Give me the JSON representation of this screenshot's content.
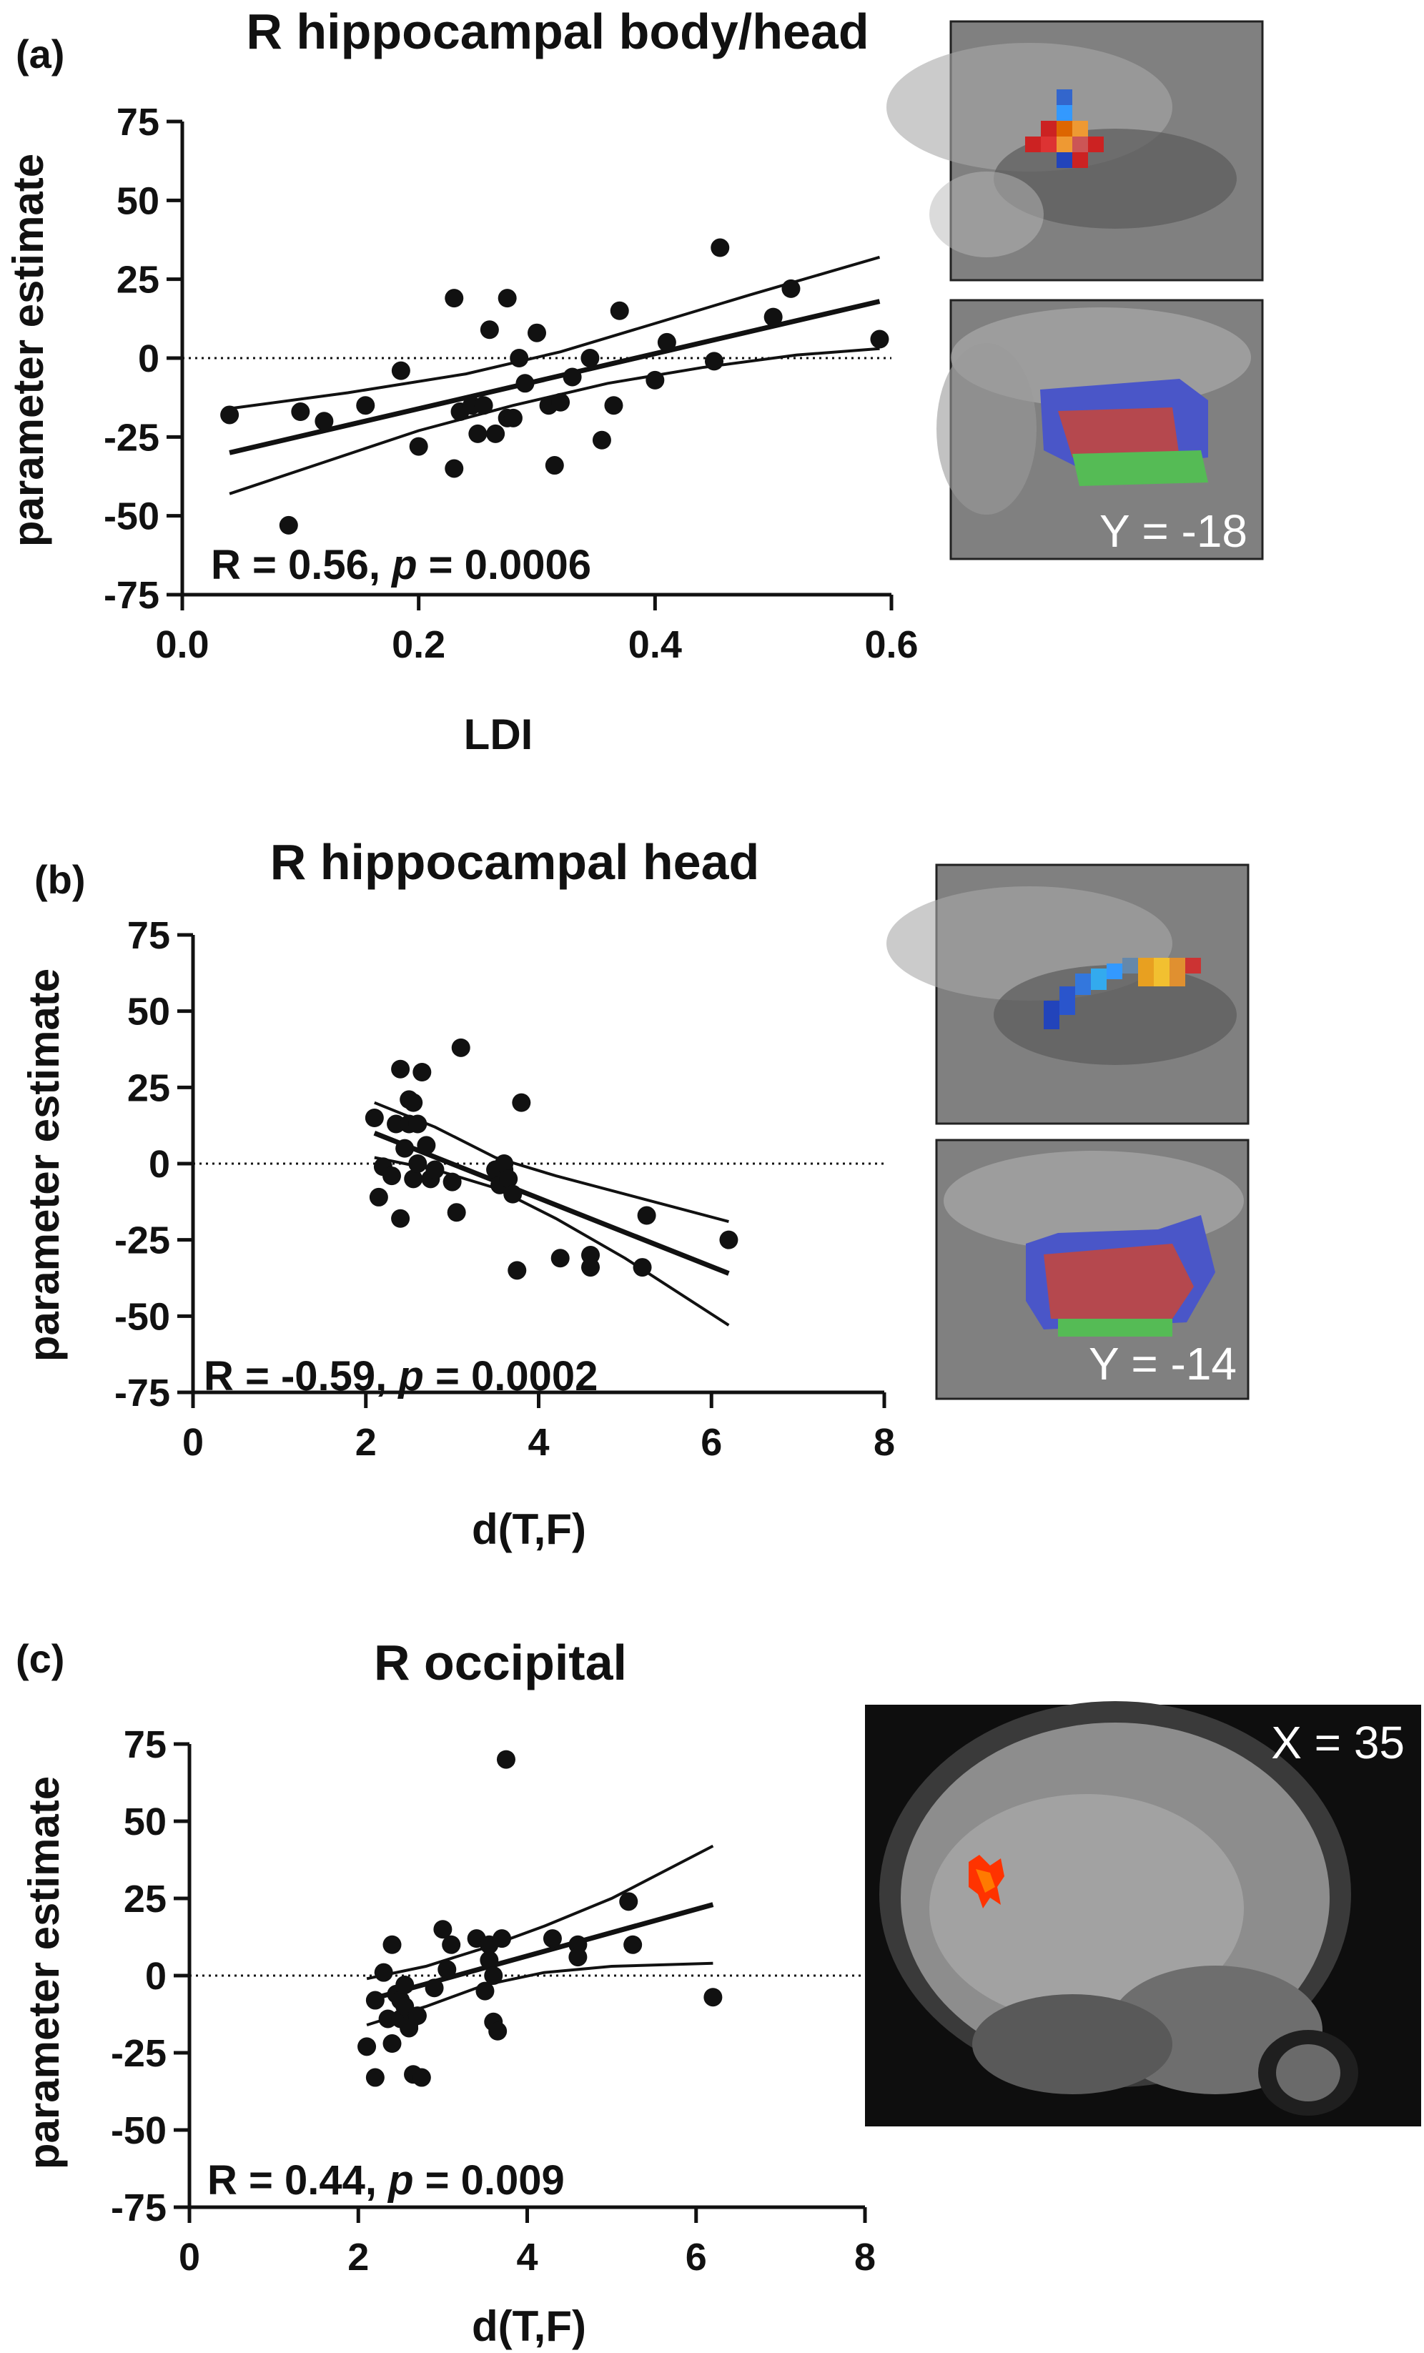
{
  "chart_data": [
    {
      "panel": "(a)",
      "type": "scatter",
      "title": "R hippocampal body/head",
      "xlabel": "LDI",
      "ylabel": "parameter estimate",
      "xlim": [
        0.0,
        0.6
      ],
      "ylim": [
        -75,
        75
      ],
      "x_ticks": [
        "0.0",
        "0.2",
        "0.4",
        "0.6"
      ],
      "y_ticks": [
        "75",
        "50",
        "25",
        "0",
        "-25",
        "-50",
        "-75"
      ],
      "stat_prefix": "R = 0.56, ",
      "stat_p": "p",
      "stat_suffix": " = 0.0006",
      "reference_line_y": 0,
      "fit": {
        "x": [
          0.04,
          0.59
        ],
        "y": [
          -30,
          18
        ]
      },
      "ci_upper": {
        "x": [
          0.04,
          0.14,
          0.24,
          0.32,
          0.4,
          0.48,
          0.59
        ],
        "y": [
          -16,
          -11,
          -5,
          2,
          11,
          20,
          32
        ]
      },
      "ci_lower": {
        "x": [
          0.04,
          0.12,
          0.2,
          0.28,
          0.36,
          0.44,
          0.52,
          0.59
        ],
        "y": [
          -43,
          -33,
          -23,
          -15,
          -8,
          -3,
          1,
          3
        ]
      },
      "points": {
        "x": [
          0.04,
          0.09,
          0.1,
          0.12,
          0.155,
          0.185,
          0.2,
          0.23,
          0.23,
          0.235,
          0.245,
          0.25,
          0.255,
          0.26,
          0.265,
          0.275,
          0.275,
          0.28,
          0.285,
          0.29,
          0.3,
          0.31,
          0.315,
          0.32,
          0.33,
          0.345,
          0.355,
          0.365,
          0.37,
          0.4,
          0.41,
          0.45,
          0.455,
          0.5,
          0.515,
          0.59
        ],
        "y": [
          -18,
          -53,
          -17,
          -20,
          -15,
          -4,
          -28,
          19,
          -35,
          -17,
          -15,
          -24,
          -15,
          9,
          -24,
          19,
          -19,
          -19,
          0,
          -8,
          8,
          -15,
          -34,
          -14,
          -6,
          0,
          -26,
          -15,
          15,
          -7,
          5,
          -1,
          35,
          13,
          22,
          6
        ]
      }
    },
    {
      "panel": "(b)",
      "type": "scatter",
      "title": "R hippocampal head",
      "xlabel": "d(T,F)",
      "ylabel": "parameter estimate",
      "xlim": [
        0,
        8
      ],
      "ylim": [
        -75,
        75
      ],
      "x_ticks": [
        "0",
        "2",
        "4",
        "6",
        "8"
      ],
      "y_ticks": [
        "75",
        "50",
        "25",
        "0",
        "-25",
        "-50",
        "-75"
      ],
      "stat_prefix": "R = -0.59, ",
      "stat_p": "p",
      "stat_suffix": " = 0.0002",
      "reference_line_y": 0,
      "fit": {
        "x": [
          2.1,
          6.2
        ],
        "y": [
          10,
          -36
        ]
      },
      "ci_upper": {
        "x": [
          2.1,
          2.8,
          3.5,
          4.2,
          5.0,
          6.2
        ],
        "y": [
          20,
          12,
          2,
          -4,
          -10,
          -19
        ]
      },
      "ci_lower": {
        "x": [
          2.1,
          2.8,
          3.5,
          4.2,
          5.0,
          6.2
        ],
        "y": [
          2,
          -2,
          -8,
          -18,
          -31,
          -53
        ]
      },
      "points": {
        "x": [
          2.1,
          2.15,
          2.2,
          2.3,
          2.35,
          2.4,
          2.4,
          2.45,
          2.5,
          2.5,
          2.55,
          2.55,
          2.6,
          2.6,
          2.65,
          2.7,
          2.75,
          2.8,
          3.0,
          3.05,
          3.1,
          3.5,
          3.55,
          3.6,
          3.6,
          3.65,
          3.7,
          3.75,
          3.8,
          4.25,
          4.6,
          4.6,
          5.2,
          5.25,
          6.2
        ],
        "y": [
          15,
          -11,
          -1,
          -4,
          13,
          31,
          -18,
          5,
          21,
          13,
          -5,
          20,
          0,
          13,
          30,
          6,
          -5,
          -2,
          -6,
          -16,
          38,
          -2,
          -7,
          -2,
          0,
          -5,
          -10,
          -35,
          20,
          -31,
          -34,
          -30,
          -34,
          -17,
          -25
        ]
      }
    },
    {
      "panel": "(c)",
      "type": "scatter",
      "title": "R occipital",
      "xlabel": "d(T,F)",
      "ylabel": "parameter estimate",
      "xlim": [
        0,
        8
      ],
      "ylim": [
        -75,
        75
      ],
      "x_ticks": [
        "0",
        "2",
        "4",
        "6",
        "8"
      ],
      "y_ticks": [
        "75",
        "50",
        "25",
        "0",
        "-25",
        "-50",
        "-75"
      ],
      "stat_prefix": "R = 0.44, ",
      "stat_p": "p",
      "stat_suffix": " = 0.009",
      "reference_line_y": 0,
      "fit": {
        "x": [
          2.1,
          6.2
        ],
        "y": [
          -8,
          23
        ]
      },
      "ci_upper": {
        "x": [
          2.1,
          2.8,
          3.5,
          4.2,
          5.0,
          6.2
        ],
        "y": [
          -1,
          3,
          9,
          16,
          25,
          42
        ]
      },
      "ci_lower": {
        "x": [
          2.1,
          2.8,
          3.5,
          4.2,
          5.0,
          6.2
        ],
        "y": [
          -16,
          -10,
          -3,
          1,
          3,
          4
        ]
      },
      "points": {
        "x": [
          2.1,
          2.2,
          2.2,
          2.3,
          2.35,
          2.4,
          2.4,
          2.45,
          2.5,
          2.5,
          2.55,
          2.55,
          2.6,
          2.6,
          2.65,
          2.7,
          2.75,
          2.9,
          3.0,
          3.05,
          3.1,
          3.4,
          3.5,
          3.55,
          3.55,
          3.6,
          3.6,
          3.65,
          3.7,
          3.75,
          4.3,
          4.6,
          4.6,
          5.2,
          5.25,
          6.2
        ],
        "y": [
          -23,
          -8,
          -33,
          1,
          -14,
          10,
          -22,
          -6,
          -14,
          -8,
          -3,
          -10,
          -17,
          -16,
          -32,
          -13,
          -33,
          -4,
          15,
          2,
          10,
          12,
          -5,
          10,
          5,
          -15,
          0,
          -18,
          12,
          70,
          12,
          10,
          6,
          24,
          10,
          -7
        ]
      }
    }
  ],
  "slice_labels": {
    "a": "Y = -18",
    "b": "Y = -14",
    "c": "X = 35"
  }
}
